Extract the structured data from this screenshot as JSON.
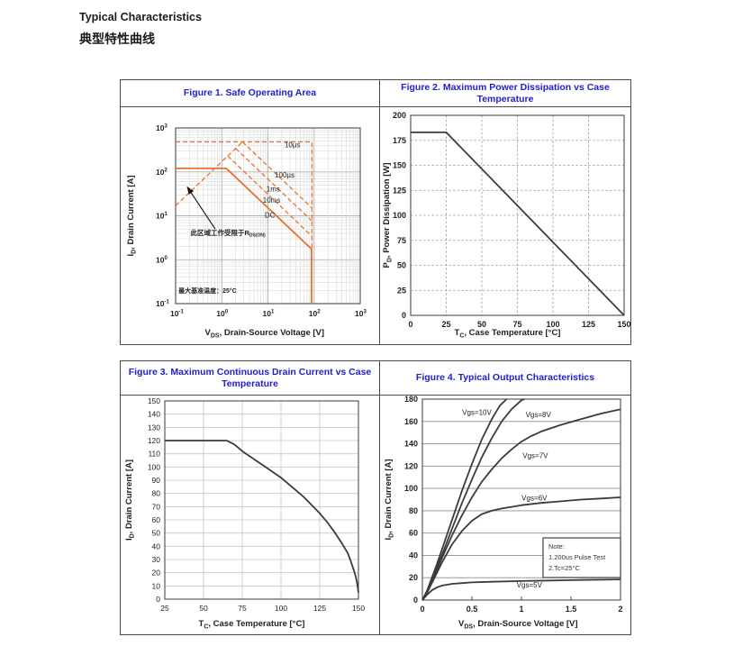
{
  "page": {
    "heading_en": "Typical Characteristics",
    "heading_zh": "典型特性曲线"
  },
  "colors": {
    "title_blue": "#2020cc",
    "soa_orange": "#e8722b",
    "curve_gray": "#3b3b3b"
  },
  "chart_data": [
    {
      "id": "fig1",
      "type": "line",
      "title": "Figure 1. Safe Operating Area",
      "xscale": "log",
      "yscale": "log",
      "xlim": [
        0.1,
        1000
      ],
      "ylim": [
        0.1,
        1000
      ],
      "xlabel": {
        "pre": "V",
        "sub": "DS",
        "post": ", Drain-Source Voltage [V]"
      },
      "ylabel": {
        "pre": "I",
        "sub": "D",
        "post": ", Drain Current [A]"
      },
      "series": [
        {
          "name": "pulse-10us-limit",
          "style": "dashed",
          "points": [
            [
              0.1,
              480
            ],
            [
              90,
              480
            ],
            [
              90,
              1.75
            ]
          ]
        },
        {
          "name": "rdson-limit-line",
          "style": "dashed",
          "points": [
            [
              0.1,
              17
            ],
            [
              2.8,
              480
            ]
          ]
        },
        {
          "name": "pulse-100us",
          "style": "dashed",
          "points": [
            [
              2.8,
              480
            ],
            [
              90,
              15
            ]
          ]
        },
        {
          "name": "pulse-1ms",
          "style": "dashed",
          "points": [
            [
              2.0,
              340
            ],
            [
              90,
              7.6
            ]
          ]
        },
        {
          "name": "pulse-10ms",
          "style": "dashed",
          "points": [
            [
              1.35,
              230
            ],
            [
              90,
              3.4
            ]
          ]
        },
        {
          "name": "dc-limit",
          "style": "solid",
          "points": [
            [
              0.1,
              120
            ],
            [
              1.25,
              120
            ],
            [
              88,
              1.75
            ],
            [
              88,
              0.1
            ]
          ]
        }
      ],
      "curve_labels": [
        {
          "text": "10µs",
          "x": 34,
          "y": 360
        },
        {
          "text": "100µs",
          "x": 23,
          "y": 75
        },
        {
          "text": "1ms",
          "x": 13,
          "y": 36
        },
        {
          "text": "10ms",
          "x": 12,
          "y": 20
        },
        {
          "text": "DC",
          "x": 11,
          "y": 9
        }
      ],
      "annotations": {
        "region_note": {
          "pre": "此区域工作受限于R",
          "sub": "DS(ON)",
          "x": 0.21,
          "y": 3.6
        },
        "temp_note": {
          "text": "最大基准温度：25°C",
          "x": 0.115,
          "y": 0.175
        },
        "arrow": {
          "x1": 0.72,
          "y1": 5.0,
          "x2": 0.18,
          "y2": 45
        }
      }
    },
    {
      "id": "fig2",
      "type": "line",
      "title": "Figure 2. Maximum Power Dissipation vs Case Temperature",
      "xlim": [
        0,
        150
      ],
      "ylim": [
        0,
        200
      ],
      "xticks": [
        0,
        25,
        50,
        75,
        100,
        125,
        150
      ],
      "yticks": [
        0,
        25,
        50,
        75,
        100,
        125,
        150,
        175,
        200
      ],
      "xlabel": {
        "pre": "T",
        "sub": "C",
        "post": ", Case Temperature [°C]"
      },
      "ylabel": {
        "pre": "P",
        "sub": "D",
        "post": ", Power Dissipation [W]"
      },
      "series": [
        {
          "name": "max-power-dissipation",
          "style": "solid",
          "points": [
            [
              0,
              183
            ],
            [
              25,
              183
            ],
            [
              150,
              0
            ]
          ]
        }
      ]
    },
    {
      "id": "fig3",
      "type": "line",
      "title": "Figure 3. Maximum Continuous Drain Current vs Case Temperature",
      "xlim": [
        25,
        150
      ],
      "ylim": [
        0,
        150
      ],
      "xticks": [
        25,
        50,
        75,
        100,
        125,
        150
      ],
      "yticks": [
        0,
        10,
        20,
        30,
        40,
        50,
        60,
        70,
        80,
        90,
        100,
        110,
        120,
        130,
        140,
        150
      ],
      "xlabel": {
        "pre": "T",
        "sub": "C",
        "post": ", Case Temperature [°C]"
      },
      "ylabel": {
        "pre": "I",
        "sub": "D",
        "post": ", Drain Current [A]"
      },
      "series": [
        {
          "name": "max-continuous-drain-current",
          "style": "solid",
          "points": [
            [
              25,
              120
            ],
            [
              65,
              120
            ],
            [
              70,
              117
            ],
            [
              75,
              112
            ],
            [
              80,
              108
            ],
            [
              85,
              104
            ],
            [
              90,
              100
            ],
            [
              95,
              96
            ],
            [
              100,
              92
            ],
            [
              105,
              87
            ],
            [
              110,
              82
            ],
            [
              115,
              77
            ],
            [
              120,
              71
            ],
            [
              125,
              65
            ],
            [
              130,
              58
            ],
            [
              135,
              50
            ],
            [
              140,
              41
            ],
            [
              143,
              35
            ],
            [
              145,
              29
            ],
            [
              147,
              22
            ],
            [
              148,
              18
            ],
            [
              149,
              13
            ],
            [
              150,
              5
            ]
          ]
        }
      ]
    },
    {
      "id": "fig4",
      "type": "line",
      "title": "Figure 4. Typical Output Characteristics",
      "xlim": [
        0,
        2
      ],
      "ylim": [
        0,
        180
      ],
      "xticks": [
        0,
        0.5,
        1,
        1.5,
        2
      ],
      "yticks": [
        0,
        20,
        40,
        60,
        80,
        100,
        120,
        140,
        160,
        180
      ],
      "xlabel": {
        "pre": "V",
        "sub": "DS",
        "post": ", Drain-Source Voltage [V]"
      },
      "ylabel": {
        "pre": "I",
        "sub": "D",
        "post": ", Drain Current [A]"
      },
      "series": [
        {
          "name": "vgs-10v",
          "style": "solid",
          "points": [
            [
              0,
              0
            ],
            [
              0.05,
              9
            ],
            [
              0.1,
              21
            ],
            [
              0.15,
              33
            ],
            [
              0.2,
              46
            ],
            [
              0.3,
              72
            ],
            [
              0.4,
              98
            ],
            [
              0.5,
              122
            ],
            [
              0.6,
              144
            ],
            [
              0.7,
              162
            ],
            [
              0.78,
              174
            ],
            [
              0.85,
              180
            ]
          ]
        },
        {
          "name": "vgs-8v",
          "style": "solid",
          "points": [
            [
              0,
              0
            ],
            [
              0.05,
              8
            ],
            [
              0.1,
              19
            ],
            [
              0.2,
              41
            ],
            [
              0.3,
              64
            ],
            [
              0.4,
              87
            ],
            [
              0.5,
              108
            ],
            [
              0.6,
              128
            ],
            [
              0.7,
              145
            ],
            [
              0.8,
              160
            ],
            [
              0.9,
              171
            ],
            [
              1.0,
              179
            ],
            [
              1.03,
              180
            ]
          ]
        },
        {
          "name": "vgs-7v",
          "style": "solid",
          "points": [
            [
              0,
              0
            ],
            [
              0.05,
              7
            ],
            [
              0.1,
              17
            ],
            [
              0.2,
              38
            ],
            [
              0.3,
              58
            ],
            [
              0.4,
              76
            ],
            [
              0.5,
              92
            ],
            [
              0.6,
              106
            ],
            [
              0.7,
              117
            ],
            [
              0.8,
              127
            ],
            [
              0.9,
              135
            ],
            [
              1.0,
              142
            ],
            [
              1.1,
              147
            ],
            [
              1.2,
              151
            ],
            [
              1.4,
              157
            ],
            [
              1.6,
              162
            ],
            [
              1.8,
              167
            ],
            [
              2.0,
              171
            ]
          ]
        },
        {
          "name": "vgs-6v",
          "style": "solid",
          "points": [
            [
              0,
              0
            ],
            [
              0.05,
              7
            ],
            [
              0.1,
              16
            ],
            [
              0.2,
              34
            ],
            [
              0.3,
              50
            ],
            [
              0.4,
              62
            ],
            [
              0.5,
              71
            ],
            [
              0.6,
              77
            ],
            [
              0.7,
              80
            ],
            [
              0.8,
              82
            ],
            [
              0.9,
              83.5
            ],
            [
              1.0,
              85
            ],
            [
              1.2,
              87
            ],
            [
              1.4,
              88.5
            ],
            [
              1.6,
              90
            ],
            [
              1.8,
              91
            ],
            [
              2.0,
              92
            ]
          ]
        },
        {
          "name": "vgs-5v",
          "style": "solid",
          "points": [
            [
              0,
              0
            ],
            [
              0.05,
              5
            ],
            [
              0.1,
              9
            ],
            [
              0.15,
              11.5
            ],
            [
              0.2,
              13
            ],
            [
              0.3,
              14.5
            ],
            [
              0.4,
              15.2
            ],
            [
              0.5,
              15.8
            ],
            [
              0.7,
              16.4
            ],
            [
              1.0,
              17
            ],
            [
              1.3,
              17.5
            ],
            [
              1.6,
              18
            ],
            [
              2.0,
              18.5
            ]
          ]
        }
      ],
      "curve_labels": [
        {
          "text": "Vgs=10V",
          "x": 0.55,
          "y": 166
        },
        {
          "text": "Vgs=8V",
          "x": 1.17,
          "y": 164
        },
        {
          "text": "Vgs=7V",
          "x": 1.14,
          "y": 127
        },
        {
          "text": "Vgs=6V",
          "x": 1.13,
          "y": 89
        },
        {
          "text": "Vgs=5V",
          "x": 1.08,
          "y": 11.5
        }
      ],
      "note": {
        "lines": [
          "Note:",
          "1.200us Pulse Test",
          "2.Tc=25°C"
        ]
      }
    }
  ]
}
